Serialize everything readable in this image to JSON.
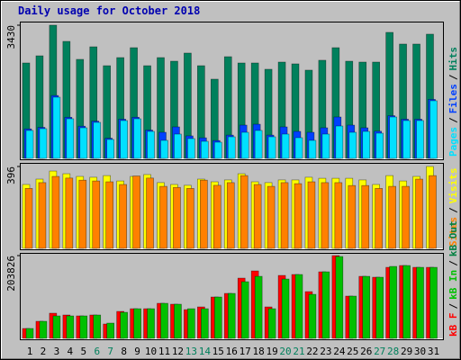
{
  "chart_data": [
    {
      "type": "bar",
      "title": "Daily usage for October 2018",
      "ylim": [
        0,
        3430
      ],
      "yticks": [
        3430
      ],
      "legend_separator": "/",
      "series": [
        {
          "name": "Pages",
          "color": "#00E0FF",
          "values": [
            719,
            765,
            1576,
            1020,
            788,
            927,
            487,
            974,
            1020,
            695,
            464,
            626,
            510,
            440,
            417,
            556,
            672,
            719,
            556,
            626,
            533,
            464,
            626,
            834,
            672,
            695,
            649,
            1066,
            974,
            974,
            1484
          ]
        },
        {
          "name": "Files",
          "color": "#0040FF",
          "values": [
            760,
            800,
            1620,
            1060,
            830,
            960,
            520,
            1010,
            1060,
            730,
            672,
            811,
            580,
            530,
            460,
            600,
            857,
            880,
            600,
            811,
            695,
            672,
            788,
            1066,
            857,
            788,
            700,
            1100,
            1010,
            1010,
            1520
          ]
        },
        {
          "name": "Hits",
          "color": "#00805C",
          "values": [
            2457,
            2642,
            3430,
            3013,
            2550,
            2874,
            2387,
            2596,
            2851,
            2387,
            2596,
            2503,
            2712,
            2387,
            2040,
            2619,
            2457,
            2457,
            2295,
            2480,
            2434,
            2272,
            2527,
            2851,
            2503,
            2480,
            2480,
            3245,
            2944,
            2944,
            3199
          ]
        }
      ]
    },
    {
      "type": "bar",
      "ylim": [
        0,
        396
      ],
      "yticks": [
        396
      ],
      "series": [
        {
          "name": "Sites",
          "color": "#FF8000",
          "values": [
            290,
            318,
            348,
            340,
            330,
            326,
            322,
            309,
            350,
            340,
            300,
            295,
            290,
            330,
            305,
            318,
            352,
            309,
            300,
            318,
            313,
            322,
            318,
            318,
            304,
            304,
            290,
            300,
            300,
            335,
            352
          ]
        },
        {
          "name": "Visits",
          "color": "#FFFF00",
          "values": [
            309,
            335,
            374,
            361,
            348,
            344,
            352,
            326,
            348,
            357,
            318,
            309,
            305,
            335,
            322,
            331,
            361,
            322,
            318,
            331,
            331,
            344,
            339,
            339,
            339,
            331,
            309,
            352,
            326,
            348,
            396
          ]
        }
      ]
    },
    {
      "type": "bar",
      "ylim": [
        0,
        203826
      ],
      "yticks": [
        203826
      ],
      "categories": [
        "1",
        "2",
        "3",
        "4",
        "5",
        "6",
        "7",
        "8",
        "9",
        "10",
        "11",
        "12",
        "13",
        "14",
        "15",
        "16",
        "17",
        "18",
        "19",
        "20",
        "21",
        "22",
        "23",
        "24",
        "25",
        "26",
        "27",
        "28",
        "29",
        "30",
        "31"
      ],
      "category_colors": [
        "#000000",
        "#000000",
        "#000000",
        "#000000",
        "#000000",
        "#00805C",
        "#00805C",
        "#000000",
        "#000000",
        "#000000",
        "#000000",
        "#000000",
        "#00805C",
        "#00805C",
        "#000000",
        "#000000",
        "#000000",
        "#000000",
        "#000000",
        "#00805C",
        "#00805C",
        "#000000",
        "#000000",
        "#000000",
        "#000000",
        "#000000",
        "#00805C",
        "#00805C",
        "#000000",
        "#000000",
        "#000000"
      ],
      "series": [
        {
          "name": "kB F",
          "color": "#FF0000",
          "values": [
            24365,
            42085,
            62020,
            57590,
            55375,
            57590,
            35440,
            66450,
            73095,
            73095,
            86385,
            84170,
            70880,
            77525,
            101890,
            110750,
            148405,
            166125,
            77525,
            155050,
            157265,
            115180,
            163910,
            203826,
            104105,
            152835,
            150620,
            174985,
            179415,
            174985,
            174985
          ]
        },
        {
          "name": "kB In",
          "color": "#00C000",
          "values": [
            24365,
            42085,
            55375,
            55375,
            55375,
            57590,
            37655,
            64235,
            73095,
            73095,
            86385,
            84170,
            73095,
            73095,
            101890,
            110750,
            139545,
            152835,
            73095,
            146190,
            157265,
            108535,
            163910,
            201565,
            104105,
            152835,
            150620,
            177200,
            179415,
            174985,
            174985
          ]
        },
        {
          "name": "kB Out",
          "color": "#008040",
          "values": [
            null,
            null,
            null,
            null,
            null,
            null,
            null,
            null,
            null,
            null,
            null,
            null,
            null,
            null,
            null,
            null,
            null,
            null,
            null,
            null,
            null,
            null,
            null,
            null,
            null,
            null,
            null,
            null,
            null,
            null,
            null
          ]
        }
      ]
    }
  ]
}
